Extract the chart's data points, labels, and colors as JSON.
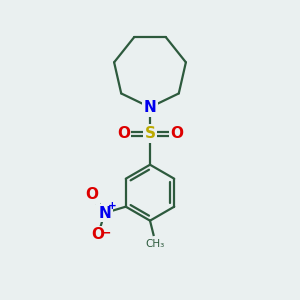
{
  "bg_color": "#eaf0f0",
  "bond_color": "#2d5a3d",
  "N_color": "#0000ee",
  "S_color": "#bbaa00",
  "O_color": "#dd0000",
  "line_width": 1.6,
  "figsize": [
    3.0,
    3.0
  ],
  "dpi": 100,
  "xlim": [
    0,
    10
  ],
  "ylim": [
    0,
    10
  ]
}
